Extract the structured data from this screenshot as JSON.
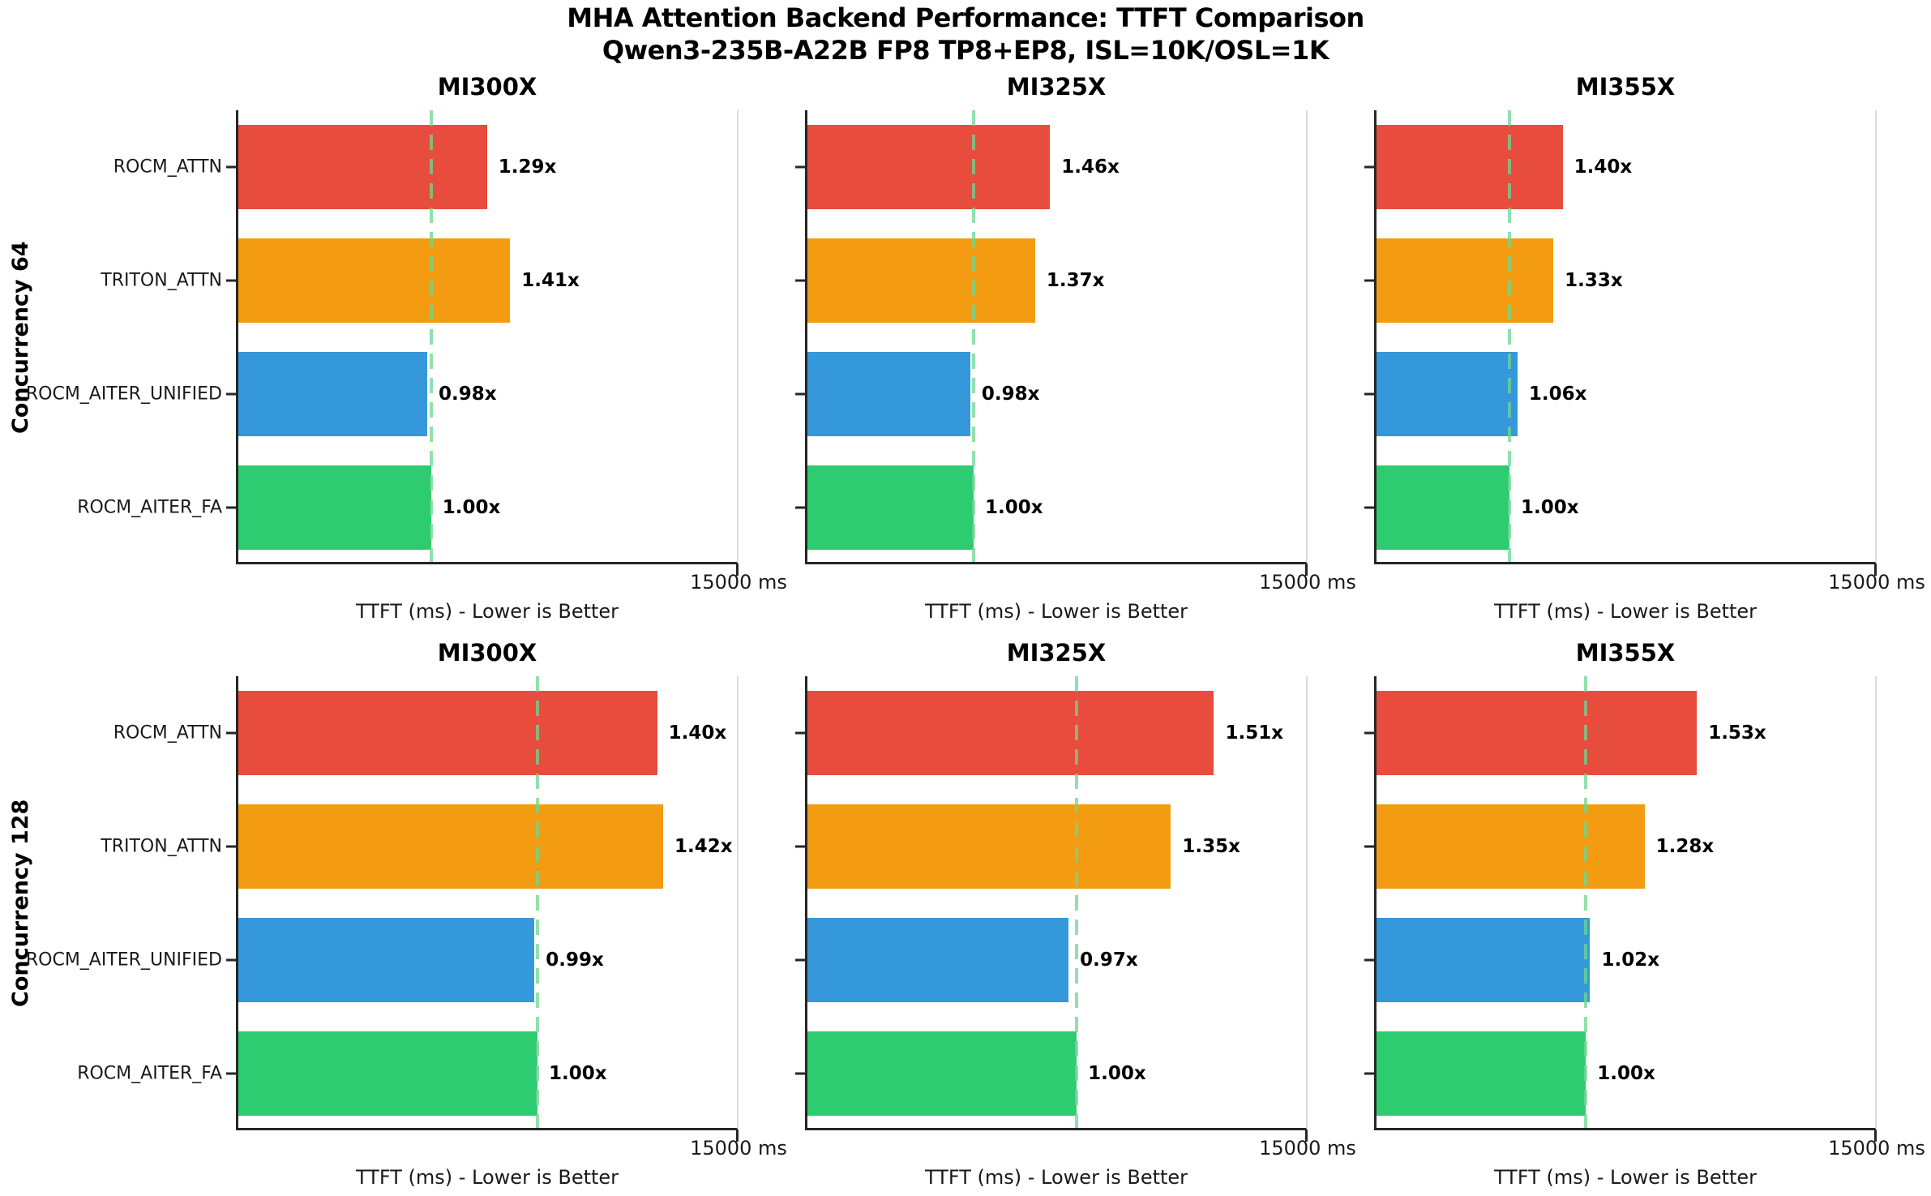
{
  "figure": {
    "title_line1": "MHA Attention Backend Performance: TTFT Comparison",
    "title_line2": "Qwen3-235B-A22B FP8 TP8+EP8, ISL=10K/OSL=1K"
  },
  "chart_data": {
    "type": "bar",
    "orientation": "horizontal",
    "title": "MHA Attention Backend Performance: TTFT Comparison",
    "subtitle": "Qwen3-235B-A22B FP8 TP8+EP8, ISL=10K/OSL=1K",
    "xlabel": "TTFT (ms) - Lower is Better",
    "x_axis_max_ms": 15000,
    "x_tick_label": "15000 ms",
    "grid": false,
    "backends": [
      "ROCM_ATTN",
      "TRITON_ATTN",
      "ROCM_AITER_UNIFIED",
      "ROCM_AITER_FA"
    ],
    "colors": {
      "ROCM_ATTN": "#e74c3c",
      "TRITON_ATTN": "#f39c12",
      "ROCM_AITER_UNIFIED": "#3498db",
      "ROCM_AITER_FA": "#2ecc71"
    },
    "baseline_line_color": "#6ed791",
    "rows": [
      {
        "row_label": "Concurrency 64",
        "panels": [
          {
            "gpu": "MI300X",
            "baseline_ttft_ms": 5800,
            "bars": [
              {
                "backend": "ROCM_ATTN",
                "speedup": 1.29,
                "label": "1.29x"
              },
              {
                "backend": "TRITON_ATTN",
                "speedup": 1.41,
                "label": "1.41x"
              },
              {
                "backend": "ROCM_AITER_UNIFIED",
                "speedup": 0.98,
                "label": "0.98x"
              },
              {
                "backend": "ROCM_AITER_FA",
                "speedup": 1.0,
                "label": "1.00x"
              }
            ]
          },
          {
            "gpu": "MI325X",
            "baseline_ttft_ms": 5000,
            "bars": [
              {
                "backend": "ROCM_ATTN",
                "speedup": 1.46,
                "label": "1.46x"
              },
              {
                "backend": "TRITON_ATTN",
                "speedup": 1.37,
                "label": "1.37x"
              },
              {
                "backend": "ROCM_AITER_UNIFIED",
                "speedup": 0.98,
                "label": "0.98x"
              },
              {
                "backend": "ROCM_AITER_FA",
                "speedup": 1.0,
                "label": "1.00x"
              }
            ]
          },
          {
            "gpu": "MI355X",
            "baseline_ttft_ms": 4000,
            "bars": [
              {
                "backend": "ROCM_ATTN",
                "speedup": 1.4,
                "label": "1.40x"
              },
              {
                "backend": "TRITON_ATTN",
                "speedup": 1.33,
                "label": "1.33x"
              },
              {
                "backend": "ROCM_AITER_UNIFIED",
                "speedup": 1.06,
                "label": "1.06x"
              },
              {
                "backend": "ROCM_AITER_FA",
                "speedup": 1.0,
                "label": "1.00x"
              }
            ]
          }
        ]
      },
      {
        "row_label": "Concurrency 128",
        "panels": [
          {
            "gpu": "MI300X",
            "baseline_ttft_ms": 9000,
            "bars": [
              {
                "backend": "ROCM_ATTN",
                "speedup": 1.4,
                "label": "1.40x"
              },
              {
                "backend": "TRITON_ATTN",
                "speedup": 1.42,
                "label": "1.42x"
              },
              {
                "backend": "ROCM_AITER_UNIFIED",
                "speedup": 0.99,
                "label": "0.99x"
              },
              {
                "backend": "ROCM_AITER_FA",
                "speedup": 1.0,
                "label": "1.00x"
              }
            ]
          },
          {
            "gpu": "MI325X",
            "baseline_ttft_ms": 8100,
            "bars": [
              {
                "backend": "ROCM_ATTN",
                "speedup": 1.51,
                "label": "1.51x"
              },
              {
                "backend": "TRITON_ATTN",
                "speedup": 1.35,
                "label": "1.35x"
              },
              {
                "backend": "ROCM_AITER_UNIFIED",
                "speedup": 0.97,
                "label": "0.97x"
              },
              {
                "backend": "ROCM_AITER_FA",
                "speedup": 1.0,
                "label": "1.00x"
              }
            ]
          },
          {
            "gpu": "MI355X",
            "baseline_ttft_ms": 6300,
            "bars": [
              {
                "backend": "ROCM_ATTN",
                "speedup": 1.53,
                "label": "1.53x"
              },
              {
                "backend": "TRITON_ATTN",
                "speedup": 1.28,
                "label": "1.28x"
              },
              {
                "backend": "ROCM_AITER_UNIFIED",
                "speedup": 1.02,
                "label": "1.02x"
              },
              {
                "backend": "ROCM_AITER_FA",
                "speedup": 1.0,
                "label": "1.00x"
              }
            ]
          }
        ]
      }
    ]
  }
}
